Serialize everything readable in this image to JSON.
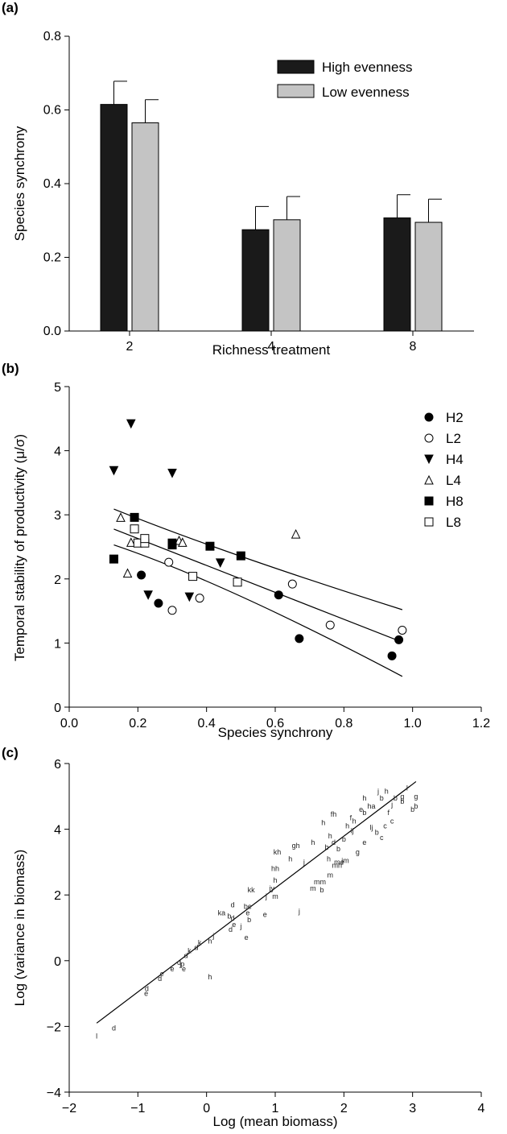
{
  "chart_data": [
    {
      "panel": "(a)",
      "type": "bar",
      "categories": [
        "2",
        "4",
        "8"
      ],
      "xlabel": "Richness treatment",
      "ylabel": "Species synchrony",
      "ylim": [
        0,
        0.8
      ],
      "yticks": [
        "0.0",
        "0.2",
        "0.4",
        "0.6",
        "0.8"
      ],
      "legend": "top-right",
      "series": [
        {
          "name": "High evenness",
          "color": "#1a1a1a",
          "values": [
            0.615,
            0.275,
            0.307
          ],
          "errors": [
            0.063,
            0.063,
            0.063
          ]
        },
        {
          "name": "Low evenness",
          "color": "#c4c4c4",
          "values": [
            0.565,
            0.302,
            0.295
          ],
          "errors": [
            0.063,
            0.063,
            0.063
          ]
        }
      ]
    },
    {
      "panel": "(b)",
      "type": "scatter",
      "xlabel": "Species synchrony",
      "ylabel": "Temporal stability of productivity (μ/σ)",
      "xlim": [
        0,
        1.2
      ],
      "ylim": [
        0,
        5
      ],
      "xticks": [
        "0.0",
        "0.2",
        "0.4",
        "0.6",
        "0.8",
        "1.0",
        "1.2"
      ],
      "yticks": [
        "0",
        "1",
        "2",
        "3",
        "4",
        "5"
      ],
      "legend": "top-right",
      "series": [
        {
          "name": "H2",
          "marker": "circle-filled",
          "points": [
            [
              0.21,
              2.06
            ],
            [
              0.26,
              1.62
            ],
            [
              0.61,
              1.75
            ],
            [
              0.67,
              1.07
            ],
            [
              0.94,
              0.8
            ],
            [
              0.96,
              1.05
            ]
          ]
        },
        {
          "name": "L2",
          "marker": "circle-open",
          "points": [
            [
              0.29,
              2.26
            ],
            [
              0.3,
              1.51
            ],
            [
              0.38,
              1.7
            ],
            [
              0.65,
              1.92
            ],
            [
              0.76,
              1.28
            ],
            [
              0.97,
              1.2
            ]
          ]
        },
        {
          "name": "H4",
          "marker": "triangle-down-filled",
          "points": [
            [
              0.13,
              3.69
            ],
            [
              0.18,
              4.42
            ],
            [
              0.3,
              3.65
            ],
            [
              0.23,
              1.75
            ],
            [
              0.35,
              1.72
            ],
            [
              0.44,
              2.25
            ]
          ]
        },
        {
          "name": "L4",
          "marker": "triangle-up-open",
          "points": [
            [
              0.15,
              2.96
            ],
            [
              0.17,
              2.09
            ],
            [
              0.18,
              2.57
            ],
            [
              0.32,
              2.6
            ],
            [
              0.33,
              2.57
            ],
            [
              0.66,
              2.7
            ]
          ]
        },
        {
          "name": "H8",
          "marker": "square-filled",
          "points": [
            [
              0.13,
              2.31
            ],
            [
              0.19,
              2.96
            ],
            [
              0.3,
              2.56
            ],
            [
              0.3,
              2.53
            ],
            [
              0.41,
              2.51
            ],
            [
              0.5,
              2.36
            ]
          ]
        },
        {
          "name": "L8",
          "marker": "square-open",
          "points": [
            [
              0.19,
              2.78
            ],
            [
              0.2,
              2.56
            ],
            [
              0.22,
              2.56
            ],
            [
              0.22,
              2.63
            ],
            [
              0.36,
              2.04
            ],
            [
              0.49,
              1.95
            ]
          ]
        }
      ],
      "fit": {
        "intercept": 3.05,
        "slope": -2.1,
        "upper": [
          [
            0.13,
            3.09
          ],
          [
            0.45,
            2.4
          ],
          [
            0.97,
            1.52
          ]
        ],
        "lower": [
          [
            0.13,
            2.53
          ],
          [
            0.45,
            1.95
          ],
          [
            0.97,
            0.48
          ]
        ]
      }
    },
    {
      "panel": "(c)",
      "type": "scatter",
      "xlabel": "Log (mean biomass)",
      "ylabel": "Log (variance in biomass)",
      "xlim": [
        -2,
        4
      ],
      "ylim": [
        -4,
        6
      ],
      "xticks": [
        "−2",
        "−1",
        "0",
        "1",
        "2",
        "3",
        "4"
      ],
      "yticks": [
        "−4",
        "−2",
        "0",
        "2",
        "4",
        "6"
      ],
      "fit": {
        "x": [
          -1.6,
          3.05
        ],
        "y": [
          -1.9,
          5.45
        ]
      },
      "points": [
        [
          "l",
          -1.6,
          -2.3
        ],
        [
          "d",
          -1.35,
          -2.05
        ],
        [
          "d",
          -0.87,
          -0.85
        ],
        [
          "e",
          -0.88,
          -1.0
        ],
        [
          "d",
          -0.68,
          -0.55
        ],
        [
          "e",
          -0.65,
          -0.4
        ],
        [
          "e",
          -0.5,
          -0.25
        ],
        [
          "d",
          -0.4,
          -0.05
        ],
        [
          "p",
          -0.35,
          -0.1
        ],
        [
          "e",
          -0.33,
          -0.25
        ],
        [
          "j",
          -0.38,
          -0.1
        ],
        [
          "d",
          -0.3,
          0.15
        ],
        [
          "k",
          -0.25,
          0.3
        ],
        [
          "d",
          -0.15,
          0.4
        ],
        [
          "h",
          0.05,
          0.6
        ],
        [
          "k",
          -0.1,
          0.55
        ],
        [
          "j",
          0.1,
          0.75
        ],
        [
          "h",
          0.05,
          -0.5
        ],
        [
          "d",
          0.35,
          0.95
        ],
        [
          "d",
          0.38,
          1.3
        ],
        [
          "e",
          0.4,
          1.1
        ],
        [
          "b",
          0.33,
          1.35
        ],
        [
          "ka",
          0.22,
          1.45
        ],
        [
          "d",
          0.38,
          1.7
        ],
        [
          "j",
          0.5,
          1.05
        ],
        [
          "e",
          0.58,
          0.7
        ],
        [
          "b",
          0.62,
          1.25
        ],
        [
          "e",
          0.6,
          1.45
        ],
        [
          "be",
          0.6,
          1.65
        ],
        [
          "kk",
          0.65,
          2.15
        ],
        [
          "e",
          0.85,
          1.4
        ],
        [
          "m",
          1.0,
          1.95
        ],
        [
          "j",
          0.87,
          1.95
        ],
        [
          "jy",
          0.95,
          2.2
        ],
        [
          "j",
          1.35,
          1.5
        ],
        [
          "hh",
          1.0,
          2.8
        ],
        [
          "h",
          1.0,
          2.45
        ],
        [
          "kh",
          1.03,
          3.3
        ],
        [
          "h",
          1.22,
          3.1
        ],
        [
          "gh",
          1.3,
          3.5
        ],
        [
          "j",
          1.42,
          3.0
        ],
        [
          "m",
          1.55,
          2.2
        ],
        [
          "mm",
          1.65,
          2.4
        ],
        [
          "b",
          1.68,
          2.15
        ],
        [
          "m",
          1.8,
          2.6
        ],
        [
          "h",
          1.78,
          3.1
        ],
        [
          "h",
          1.55,
          3.6
        ],
        [
          "b",
          1.75,
          3.45
        ],
        [
          "h",
          1.7,
          4.2
        ],
        [
          "fh",
          1.85,
          4.45
        ],
        [
          "h",
          1.8,
          3.8
        ],
        [
          "b",
          1.92,
          3.4
        ],
        [
          "me",
          1.93,
          3.0
        ],
        [
          "jm",
          2.02,
          3.05
        ],
        [
          "b",
          2.0,
          3.7
        ],
        [
          "ij",
          2.12,
          3.95
        ],
        [
          "g",
          2.2,
          3.3
        ],
        [
          "e",
          2.3,
          3.6
        ],
        [
          "h",
          2.15,
          4.25
        ],
        [
          "b",
          2.3,
          4.5
        ],
        [
          "ha",
          2.4,
          4.7
        ],
        [
          "lj",
          2.4,
          4.05
        ],
        [
          "b",
          2.48,
          3.9
        ],
        [
          "c",
          2.55,
          3.75
        ],
        [
          "c",
          2.6,
          4.1
        ],
        [
          "f",
          2.65,
          4.5
        ],
        [
          "j",
          2.7,
          4.75
        ],
        [
          "b",
          2.75,
          4.95
        ],
        [
          "g",
          2.85,
          5.0
        ],
        [
          "l",
          2.92,
          5.25
        ],
        [
          "b",
          3.0,
          4.6
        ],
        [
          "b",
          3.05,
          4.7
        ],
        [
          "g",
          3.05,
          5.0
        ],
        [
          "c",
          2.7,
          4.25
        ],
        [
          "h",
          2.3,
          4.95
        ],
        [
          "j",
          2.5,
          5.15
        ],
        [
          "b",
          2.55,
          4.95
        ],
        [
          "e",
          2.25,
          4.6
        ],
        [
          "d",
          1.85,
          3.6
        ],
        [
          "h",
          2.05,
          4.1
        ],
        [
          "f",
          2.1,
          4.35
        ],
        [
          "mh",
          1.9,
          2.9
        ],
        [
          "b",
          2.85,
          4.85
        ],
        [
          "h",
          2.62,
          5.15
        ]
      ]
    }
  ]
}
